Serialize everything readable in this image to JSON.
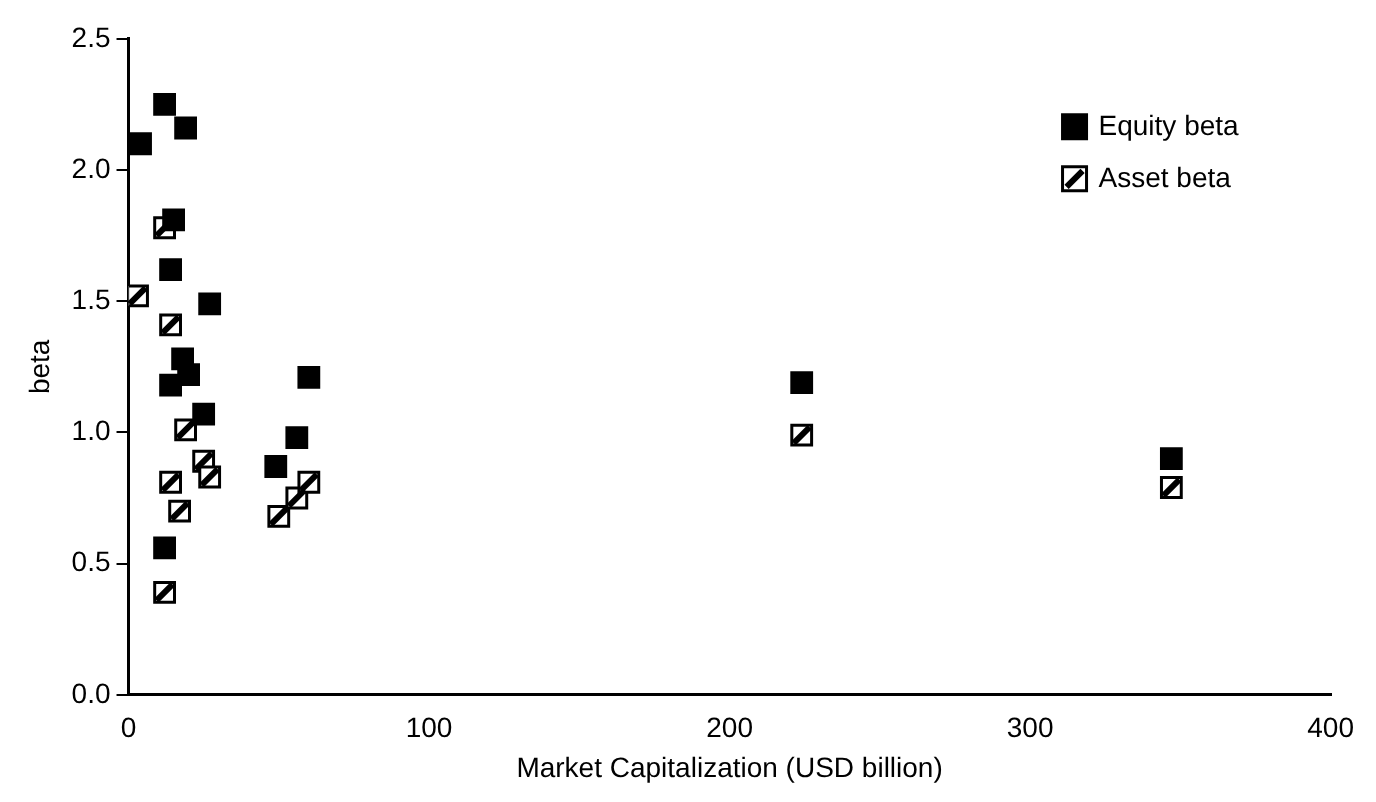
{
  "chart_data": {
    "type": "scatter",
    "xlabel": "Market Capitalization (USD billion)",
    "ylabel": "beta",
    "xlim": [
      0,
      400
    ],
    "xticks": [
      0,
      100,
      200,
      300,
      400
    ],
    "ylim": [
      0,
      2.5
    ],
    "yticks": [
      {
        "value": 0,
        "label": "0.0"
      },
      {
        "value": 0.5,
        "label": "0.5"
      },
      {
        "value": 1,
        "label": "1.0"
      },
      {
        "value": 1.5,
        "label": "1.5"
      },
      {
        "value": 2,
        "label": "2.0"
      },
      {
        "value": 2.5,
        "label": "2.5"
      }
    ],
    "grid": false,
    "legend": "top right",
    "marker": "square",
    "series": [
      {
        "name": "Equity beta",
        "color": "#000000",
        "x": [
          4,
          12,
          19,
          15,
          14,
          27,
          18,
          20,
          14,
          60,
          25,
          56,
          49,
          12,
          224,
          347
        ],
        "values": [
          2.1,
          2.25,
          2.16,
          1.81,
          1.62,
          1.49,
          1.28,
          1.22,
          1.18,
          1.21,
          1.07,
          0.98,
          0.87,
          0.56,
          1.19,
          0.9
        ]
      },
      {
        "name": "Asset beta",
        "color": "#ffffff",
        "x": [
          12,
          3,
          14,
          19,
          25,
          27,
          14,
          17,
          50,
          56,
          60,
          12,
          224,
          347
        ],
        "values": [
          1.78,
          1.52,
          1.41,
          1.01,
          0.89,
          0.83,
          0.81,
          0.7,
          0.68,
          0.75,
          0.81,
          0.39,
          0.99,
          0.79
        ]
      }
    ]
  }
}
